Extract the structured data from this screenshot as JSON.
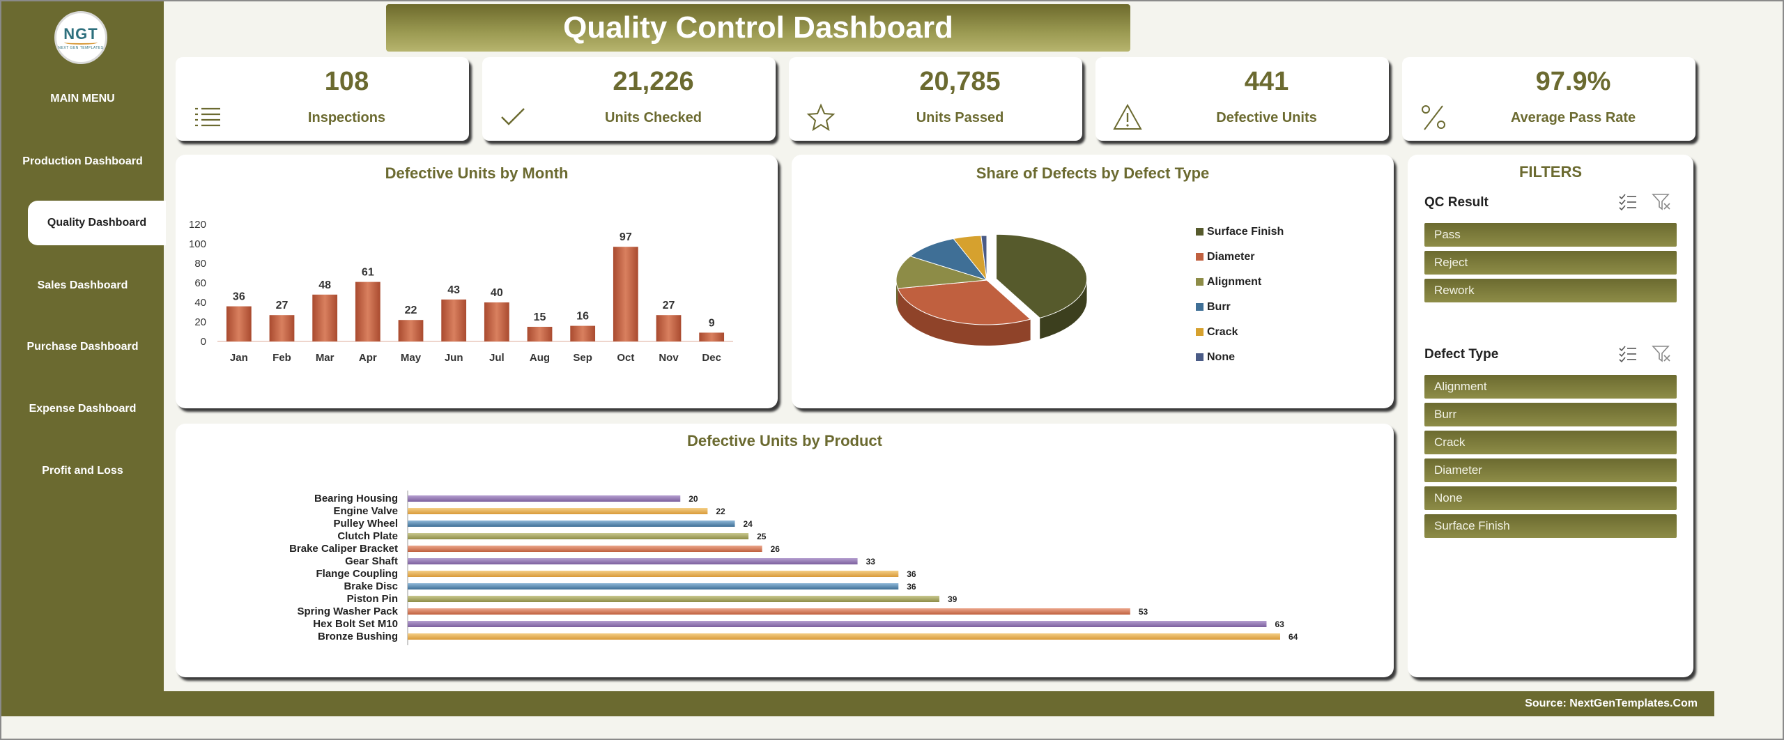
{
  "sidebar": {
    "logo_text": "NGT",
    "logo_subtext": "NEXT GEN TEMPLATES",
    "menu_title": "MAIN MENU",
    "items": [
      {
        "label": "Production Dashboard",
        "active": false
      },
      {
        "label": "Quality Dashboard",
        "active": true
      },
      {
        "label": "Sales Dashboard",
        "active": false
      },
      {
        "label": "Purchase Dashboard",
        "active": false
      },
      {
        "label": "Expense Dashboard",
        "active": false
      },
      {
        "label": "Profit and Loss",
        "active": false
      }
    ]
  },
  "header": {
    "title": "Quality Control Dashboard"
  },
  "kpis": [
    {
      "value": "108",
      "label": "Inspections",
      "icon": "list-icon"
    },
    {
      "value": "21,226",
      "label": "Units Checked",
      "icon": "checkmark-icon"
    },
    {
      "value": "20,785",
      "label": "Units Passed",
      "icon": "star-icon"
    },
    {
      "value": "441",
      "label": "Defective Units",
      "icon": "warning-icon"
    },
    {
      "value": "97.9%",
      "label": "Average Pass Rate",
      "icon": "percent-icon"
    }
  ],
  "colors": {
    "brand": "#6b6a30",
    "bar_month": "#c0603f",
    "pie_surface_finish": "#565a2c",
    "pie_diameter": "#c0603f",
    "pie_alignment": "#8d8c47",
    "pie_burr": "#3f6f96",
    "pie_crack": "#d6a12e",
    "pie_none": "#4a5b86"
  },
  "filters": {
    "title": "FILTERS",
    "qc_result": {
      "label": "QC Result",
      "options": [
        "Pass",
        "Reject",
        "Rework"
      ]
    },
    "defect_type": {
      "label": "Defect Type",
      "options": [
        "Alignment",
        "Burr",
        "Crack",
        "Diameter",
        "None",
        "Surface Finish"
      ]
    }
  },
  "footer": {
    "source": "Source: NextGenTemplates.Com"
  },
  "chart_data": [
    {
      "type": "bar",
      "title": "Defective Units by Month",
      "categories": [
        "Jan",
        "Feb",
        "Mar",
        "Apr",
        "May",
        "Jun",
        "Jul",
        "Aug",
        "Sep",
        "Oct",
        "Nov",
        "Dec"
      ],
      "values": [
        36,
        27,
        48,
        61,
        22,
        43,
        40,
        15,
        16,
        97,
        27,
        9
      ],
      "yticks": [
        0,
        20,
        40,
        60,
        80,
        100,
        120
      ],
      "ylim": [
        0,
        120
      ],
      "xlabel": "",
      "ylabel": "",
      "grid": false
    },
    {
      "type": "pie",
      "title": "Share of Defects by Defect Type",
      "categories": [
        "Surface Finish",
        "Diameter",
        "Alignment",
        "Burr",
        "Crack",
        "None"
      ],
      "values": [
        42,
        30,
        12,
        10,
        5,
        1
      ],
      "legend": "right"
    },
    {
      "type": "bar",
      "orientation": "horizontal",
      "title": "Defective Units by Product",
      "categories": [
        "Bearing Housing",
        "Engine Valve",
        "Pulley Wheel",
        "Clutch Plate",
        "Brake Caliper Bracket",
        "Gear Shaft",
        "Flange Coupling",
        "Brake Disc",
        "Piston Pin",
        "Spring Washer Pack",
        "Hex Bolt Set M10",
        "Bronze Bushing"
      ],
      "values": [
        20,
        22,
        24,
        25,
        26,
        33,
        36,
        36,
        39,
        53,
        63,
        64
      ],
      "xlim": [
        0,
        64
      ],
      "grid": false
    }
  ]
}
